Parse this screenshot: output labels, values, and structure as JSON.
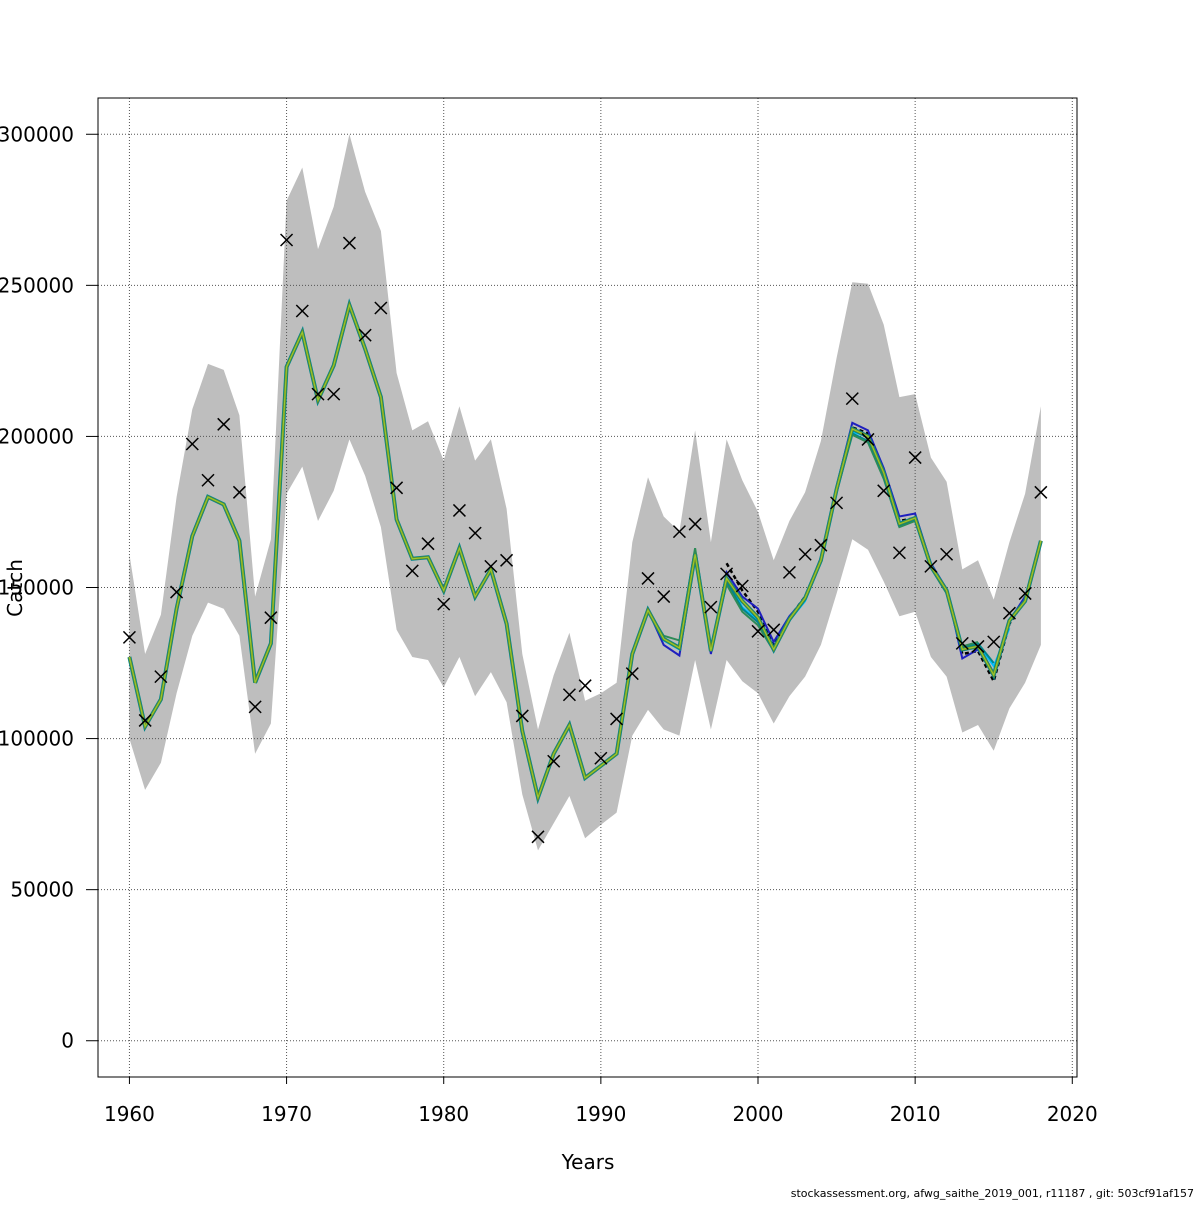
{
  "chart_data": {
    "type": "line",
    "title": "",
    "xlabel": "Years",
    "ylabel": "Catch",
    "xlim": [
      1958,
      2020.3
    ],
    "ylim": [
      -12000,
      312000
    ],
    "xticks": [
      1960,
      1970,
      1980,
      1990,
      2000,
      2010,
      2020
    ],
    "yticks": [
      0,
      50000,
      100000,
      150000,
      200000,
      250000,
      300000
    ],
    "xtick_labels": [
      "1960",
      "1970",
      "1980",
      "1990",
      "2000",
      "2010",
      "2020"
    ],
    "ytick_labels": [
      "0",
      "50000",
      "100000",
      "150000",
      "200000",
      "250000",
      "300000"
    ],
    "grid": true,
    "colors": {
      "band": "#bebebe",
      "observed_marker": "#000000",
      "grid": "#555555",
      "series": [
        "#000000",
        "#1f1fbf",
        "#00bfff",
        "#00868b",
        "#2e8b57",
        "#6b8e23",
        "#9acd32"
      ]
    },
    "years": [
      1960,
      1961,
      1962,
      1963,
      1964,
      1965,
      1966,
      1967,
      1968,
      1969,
      1970,
      1971,
      1972,
      1973,
      1974,
      1975,
      1976,
      1977,
      1978,
      1979,
      1980,
      1981,
      1982,
      1983,
      1984,
      1985,
      1986,
      1987,
      1988,
      1989,
      1990,
      1991,
      1992,
      1993,
      1994,
      1995,
      1996,
      1997,
      1998,
      1999,
      2000,
      2001,
      2002,
      2003,
      2004,
      2005,
      2006,
      2007,
      2008,
      2009,
      2010,
      2011,
      2012,
      2013,
      2014,
      2015,
      2016,
      2017,
      2018
    ],
    "observed_catch": [
      133500,
      106000,
      120500,
      148500,
      197500,
      185500,
      204000,
      181500,
      110500,
      140000,
      265000,
      241500,
      214000,
      214000,
      264000,
      233500,
      242500,
      183000,
      155500,
      164500,
      144500,
      175500,
      168000,
      157000,
      159000,
      107500,
      67500,
      92500,
      114500,
      117500,
      93500,
      106500,
      121500,
      153000,
      147000,
      168500,
      171000,
      143500,
      154500,
      150500,
      135500,
      136000,
      155000,
      161000,
      164000,
      178000,
      212500,
      199000,
      182000,
      161500,
      193000,
      157000,
      161000,
      131500,
      130500,
      132000,
      141500,
      148000,
      181500
    ],
    "band_upper": [
      161000,
      128000,
      141000,
      180000,
      209000,
      224000,
      222000,
      207000,
      147000,
      166000,
      278000,
      289000,
      262000,
      276000,
      300000,
      281000,
      268000,
      221000,
      202000,
      205000,
      192000,
      210000,
      192000,
      199000,
      176000,
      128000,
      103000,
      121000,
      135000,
      112500,
      115000,
      118500,
      165000,
      186500,
      173500,
      168500,
      202000,
      165000,
      199000,
      185500,
      175000,
      159000,
      172000,
      181500,
      198500,
      226000,
      251000,
      250500,
      237000,
      213000,
      214000,
      193000,
      185000,
      156000,
      159000,
      146000,
      165000,
      181000,
      210000
    ],
    "band_lower": [
      100000,
      83000,
      92000,
      115000,
      134000,
      145000,
      143000,
      134000,
      95000,
      105000,
      181000,
      190000,
      172000,
      182000,
      199000,
      187000,
      170000,
      136000,
      127000,
      126000,
      117000,
      127000,
      114000,
      122000,
      112000,
      81500,
      63000,
      72000,
      81000,
      67000,
      71500,
      75500,
      101000,
      109500,
      103000,
      101000,
      126000,
      103000,
      126000,
      119000,
      115000,
      105000,
      114000,
      120500,
      131000,
      148000,
      166000,
      162500,
      152000,
      140500,
      142000,
      127000,
      120500,
      102000,
      104500,
      96000,
      110000,
      118500,
      131000
    ],
    "fit_main": [
      127000,
      104000,
      113000,
      143000,
      167000,
      180000,
      177500,
      165500,
      118500,
      131500,
      223000,
      234500,
      212000,
      223500,
      243500,
      229000,
      213000,
      172500,
      159500,
      160000,
      149000,
      163000,
      147000,
      156000,
      138000,
      102500,
      80500,
      95000,
      104500,
      87000,
      91000,
      95000,
      128000,
      142500,
      133000,
      130000,
      161000,
      129000,
      153000,
      145500,
      140000,
      129500,
      139500,
      146500,
      159000,
      182500,
      202500,
      200000,
      188000,
      171000,
      173000,
      157000,
      149000,
      129500,
      130500,
      121000,
      139000,
      145500,
      165500
    ],
    "fit_peels": [
      {
        "years": [
          1998,
          1999,
          2000,
          2001,
          2002,
          2003,
          2004,
          2005,
          2006,
          2007,
          2008,
          2009,
          2010,
          2011,
          2012,
          2013,
          2014,
          2015,
          2016,
          2017,
          2018
        ],
        "values": [
          158000,
          149000,
          142000,
          131000,
          140000,
          147000,
          159000,
          182000,
          203000,
          201000,
          187000,
          172000,
          173000,
          157000,
          149000,
          128000,
          129000,
          119000,
          138000,
          146000,
          165000
        ]
      },
      {
        "years": [
          1993,
          1994,
          1995,
          1996,
          1997,
          1998,
          1999,
          2000,
          2001,
          2002,
          2003,
          2004,
          2005,
          2006,
          2007,
          2008,
          2009,
          2010,
          2011,
          2012,
          2013,
          2014,
          2015,
          2016,
          2017
        ],
        "values": [
          142500,
          131000,
          127500,
          160000,
          128000,
          155000,
          147000,
          143000,
          132000,
          140500,
          146500,
          160000,
          183500,
          204500,
          202000,
          189500,
          173500,
          174500,
          158000,
          149500,
          126500,
          129500,
          121500,
          139000,
          147000
        ]
      },
      {
        "years": [
          1993,
          1994,
          1995,
          1996,
          1997,
          1998,
          1999,
          2000,
          2001,
          2002,
          2003,
          2004,
          2005,
          2006,
          2007,
          2008,
          2009,
          2010,
          2011,
          2012,
          2013,
          2014,
          2015,
          2016
        ],
        "values": [
          142500,
          132500,
          129500,
          159500,
          129000,
          152500,
          143500,
          139000,
          130000,
          139000,
          145500,
          158500,
          182500,
          201500,
          200000,
          188000,
          171500,
          173000,
          157000,
          149000,
          130000,
          131500,
          124000,
          136500
        ]
      },
      {
        "years": [
          1993,
          1994,
          1995,
          1996,
          1997,
          1998,
          1999,
          2000,
          2001,
          2002,
          2003,
          2004,
          2005,
          2006,
          2007,
          2008,
          2009,
          2010,
          2011,
          2012,
          2013,
          2014,
          2015
        ],
        "values": [
          142500,
          133000,
          130500,
          161000,
          129500,
          152000,
          143000,
          138500,
          129500,
          139000,
          146000,
          159000,
          182000,
          201000,
          198500,
          186500,
          170500,
          172500,
          156500,
          148500,
          130000,
          131500,
          125000
        ]
      },
      {
        "years": [
          1993,
          1994,
          1995,
          1996,
          1997,
          1998,
          1999,
          2000,
          2001,
          2002,
          2003,
          2004,
          2005,
          2006,
          2007,
          2008,
          2009,
          2010,
          2011,
          2012,
          2013,
          2014
        ],
        "values": [
          142500,
          134000,
          132500,
          163000,
          130000,
          151000,
          142000,
          137500,
          129000,
          139000,
          146000,
          158500,
          181500,
          200500,
          198000,
          186000,
          170000,
          172000,
          156500,
          148000,
          130500,
          132000
        ]
      }
    ],
    "footer": "stockassessment.org, afwg_saithe_2019_001, r11187 , git: 503cf91af157"
  }
}
